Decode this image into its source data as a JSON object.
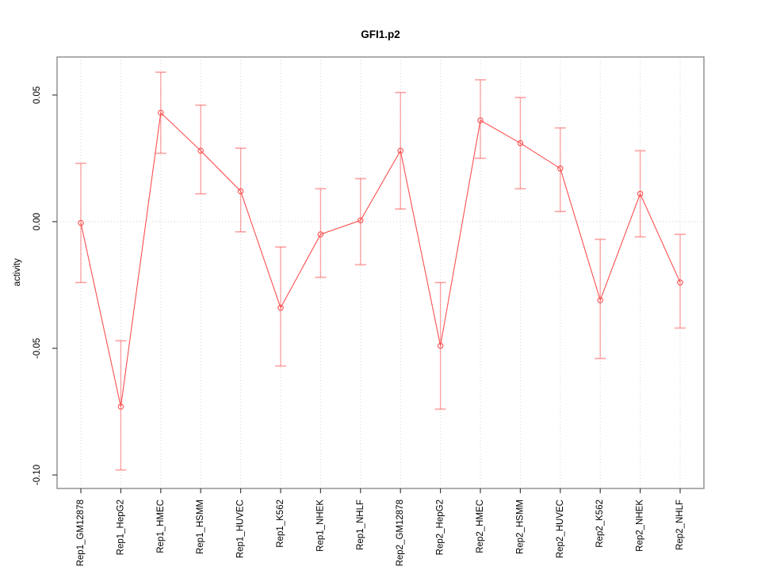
{
  "chart_data": {
    "type": "line",
    "title": "GFI1.p2",
    "xlabel": "",
    "ylabel": "activity",
    "ylim": [
      -0.105,
      0.065
    ],
    "grid": "vertical dotted gridline at each category plus dotted horizontal line at y=0",
    "legend": "none",
    "marker": "open-circle",
    "error_bars": true,
    "categories": [
      "Rep1_GM12878",
      "Rep1_HepG2",
      "Rep1_HMEC",
      "Rep1_HSMM",
      "Rep1_HUVEC",
      "Rep1_K562",
      "Rep1_NHEK",
      "Rep1_NHLF",
      "Rep2_GM12878",
      "Rep2_HepG2",
      "Rep2_HMEC",
      "Rep2_HSMM",
      "Rep2_HUVEC",
      "Rep2_K562",
      "Rep2_NHEK",
      "Rep2_NHLF"
    ],
    "series": [
      {
        "name": "activity",
        "values": [
          -0.0005,
          -0.073,
          0.043,
          0.028,
          0.012,
          -0.034,
          -0.005,
          0.0005,
          0.028,
          -0.049,
          0.04,
          0.031,
          0.021,
          -0.031,
          0.011,
          -0.024
        ],
        "upper": [
          0.023,
          -0.047,
          0.059,
          0.046,
          0.029,
          -0.01,
          0.013,
          0.017,
          0.051,
          -0.024,
          0.056,
          0.049,
          0.037,
          -0.007,
          0.028,
          -0.005
        ],
        "lower": [
          -0.024,
          -0.098,
          0.027,
          0.011,
          -0.004,
          -0.057,
          -0.022,
          -0.017,
          0.005,
          -0.074,
          0.025,
          0.013,
          0.004,
          -0.054,
          -0.006,
          -0.042
        ]
      }
    ],
    "yticks": [
      {
        "value": 0.05,
        "label": "0.05"
      },
      {
        "value": 0.0,
        "label": "0.00"
      },
      {
        "value": -0.05,
        "label": "-0.05"
      },
      {
        "value": -0.1,
        "label": "-0.10"
      }
    ],
    "colors": {
      "line": "#fb4f4f",
      "point": "#fb4f4f",
      "error_bar": "rgba(251,79,79,0.5)",
      "grid": "#d6d6d6",
      "zero_line": "#cccccc",
      "box": "#999999",
      "tick": "#404040",
      "text": "#000000",
      "background": "#ffffff"
    }
  }
}
